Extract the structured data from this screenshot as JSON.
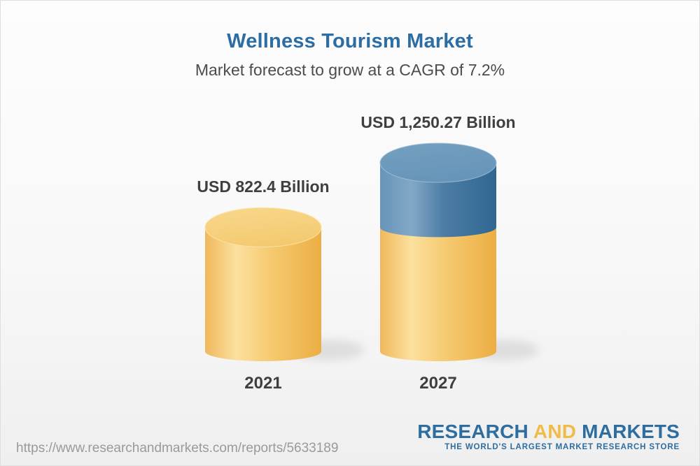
{
  "page": {
    "background_top": "#FDFDFD",
    "background_bottom": "#EFEFEF",
    "border_color": "#DFDFDF"
  },
  "header": {
    "title": "Wellness Tourism Market",
    "title_color": "#2C6DA4",
    "subtitle": "Market forecast to grow at a CAGR of 7.2%",
    "subtitle_color": "#4C4C4C"
  },
  "chart_data": {
    "type": "bar",
    "style": "3d-cylinder",
    "title": "Wellness Tourism Market",
    "subtitle": "Market forecast to grow at a CAGR of 7.2%",
    "categories": [
      "2021",
      "2027"
    ],
    "values": [
      822.4,
      1250.27
    ],
    "value_labels": [
      "USD 822.4 Billion",
      "USD 1,250.27 Billion"
    ],
    "unit": "USD Billion",
    "cagr_percent": 7.2,
    "legend": "none",
    "axes": "none",
    "label_color": "#3F3F3F",
    "colors": {
      "base_segment_yellow": "#F5C96F",
      "growth_segment_blue": "#4F80A8"
    },
    "notes": "2027 cylinder repeats the 2021 base value in yellow with the incremental growth shown as a blue cap segment"
  },
  "footer": {
    "url": "https://www.researchandmarkets.com/reports/5633189",
    "url_color": "#9A9A9A",
    "logo": {
      "word1": "RESEARCH",
      "word2": "AND",
      "word3": "MARKETS",
      "tagline": "THE WORLD'S LARGEST MARKET RESEARCH STORE",
      "blue": "#2E6DA0",
      "gold": "#F0BC47"
    }
  }
}
